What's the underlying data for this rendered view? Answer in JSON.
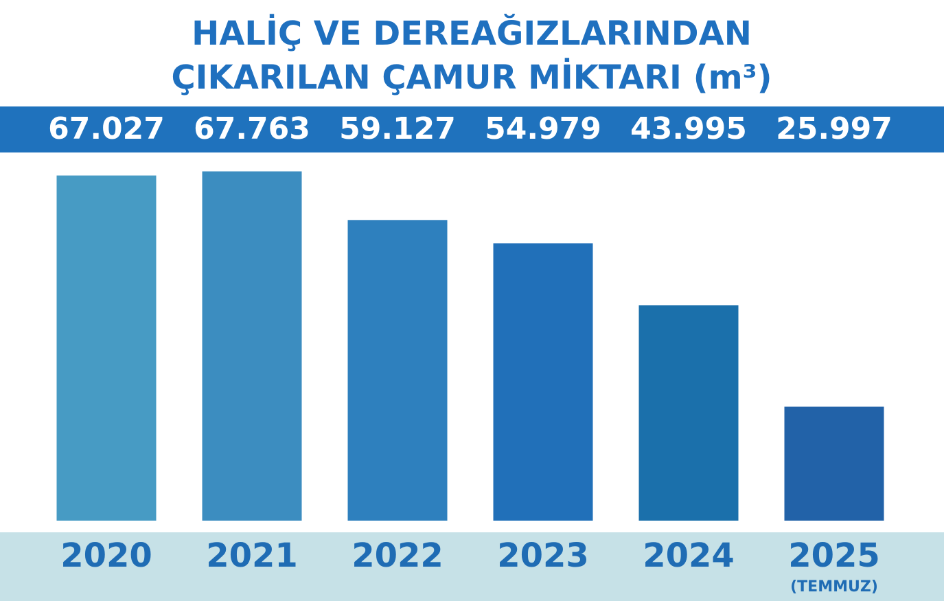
{
  "chart_data": {
    "type": "bar",
    "title": [
      "HALİÇ VE DEREAĞIZLARINDAN",
      "ÇIKARILAN ÇAMUR MİKTARI (m³)"
    ],
    "categories": [
      "2020",
      "2021",
      "2022",
      "2023",
      "2024",
      "2025"
    ],
    "category_note": "(TEMMUZ)",
    "values": [
      67027,
      67763,
      59127,
      54979,
      43995,
      25997
    ],
    "value_labels": [
      "67.027",
      "67.763",
      "59.127",
      "54.979",
      "43.995",
      "25.997"
    ],
    "colors": [
      "#479bc4",
      "#3c8dc0",
      "#2e80be",
      "#2170b9",
      "#1b70ab",
      "#2262a8"
    ],
    "ylim": [
      5750,
      70750
    ]
  }
}
